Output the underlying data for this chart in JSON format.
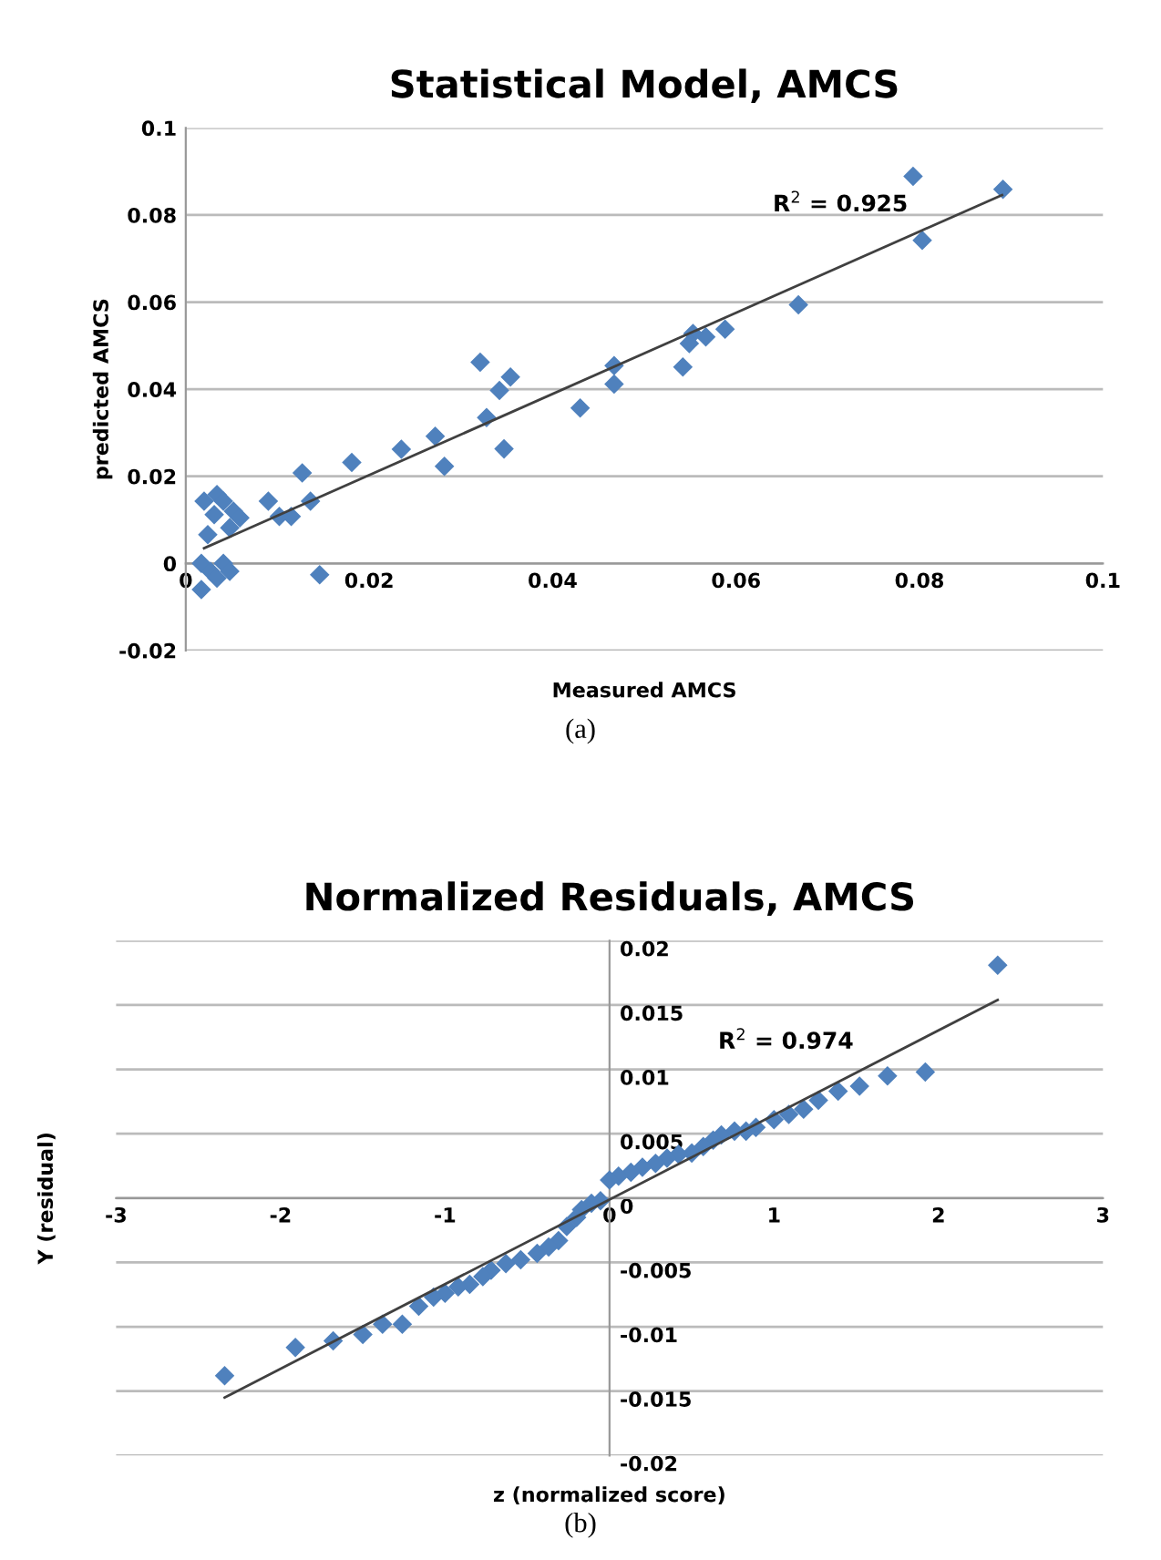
{
  "chart_data": [
    {
      "type": "scatter",
      "title": "Statistical Model, AMCS",
      "xlabel": "Measured AMCS",
      "ylabel": "predicted AMCS",
      "xlim": [
        0,
        0.1
      ],
      "xticks": [
        0,
        0.02,
        0.04,
        0.06,
        0.08,
        0.1
      ],
      "ylim": [
        -0.02,
        0.1
      ],
      "yticks": [
        -0.02,
        0,
        0.02,
        0.04,
        0.06,
        0.08,
        0.1
      ],
      "grid": "y",
      "marker": "diamond",
      "series": [
        {
          "color": "#4f81bd",
          "x": [
            0.0793,
            0.0891,
            0.0803,
            0.0668,
            0.0588,
            0.0567,
            0.0553,
            0.0549,
            0.0542,
            0.0467,
            0.0467,
            0.043,
            0.0321,
            0.0354,
            0.0342,
            0.0328,
            0.0347,
            0.0272,
            0.0282,
            0.0235,
            0.0181,
            0.0127,
            0.0136,
            0.0115,
            0.0102,
            0.009,
            0.0146,
            0.002,
            0.0034,
            0.0041,
            0.0052,
            0.0059,
            0.0024,
            0.0048,
            0.0031,
            0.0017,
            0.0027,
            0.0041,
            0.0048,
            0.0034,
            0.0017
          ],
          "values": [
            0.0889,
            0.0859,
            0.0742,
            0.0594,
            0.0538,
            0.052,
            0.0528,
            0.0505,
            0.0451,
            0.0454,
            0.0412,
            0.0357,
            0.0462,
            0.0428,
            0.0397,
            0.0335,
            0.0263,
            0.0292,
            0.0223,
            0.0262,
            0.0232,
            0.0208,
            0.0143,
            0.0108,
            0.0108,
            0.0143,
            -0.0026,
            0.0143,
            0.0158,
            0.0143,
            0.012,
            0.0105,
            0.0066,
            0.0082,
            0.0112,
            0,
            -0.0018,
            0,
            -0.0018,
            -0.0034,
            -0.006
          ]
        },
        {
          "type": "line",
          "color": "#404040",
          "marker": "none",
          "x": [
            0.002,
            0.089
          ],
          "values": [
            0.0035,
            0.0846
          ]
        }
      ],
      "annotations": [
        "R$^{2}$ = 0.925",
        "(a)"
      ]
    },
    {
      "type": "scatter",
      "title": "Normalized Residuals, AMCS",
      "xlabel": "z (normalized score)",
      "ylabel": "Y (residual)",
      "xlim": [
        -3,
        3
      ],
      "xticks": [
        -3,
        -2,
        -1,
        0,
        1,
        2,
        3
      ],
      "ylim": [
        -0.02,
        0.02
      ],
      "yticks": [
        -0.02,
        -0.015,
        -0.01,
        -0.005,
        0,
        0.005,
        0.01,
        0.015,
        0.02
      ],
      "grid": "y",
      "marker": "diamond",
      "series": [
        {
          "color": "#4f81bd",
          "x": [
            2.36,
            1.92,
            1.69,
            1.52,
            1.39,
            1.27,
            1.18,
            1.09,
            1.0,
            0.89,
            0.83,
            0.76,
            0.68,
            0.63,
            0.57,
            0.5,
            0.42,
            0.35,
            0.28,
            0.2,
            0.13,
            0.055,
            0,
            -0.055,
            -0.11,
            -0.17,
            -0.2,
            -0.26,
            -0.31,
            -0.37,
            -0.44,
            -0.54,
            -0.63,
            -0.72,
            -0.77,
            -0.85,
            -0.92,
            -1.0,
            -1.07,
            -1.16,
            -1.26,
            -1.38,
            -1.5,
            -1.68,
            -1.91,
            -2.34
          ],
          "values": [
            0.0181,
            0.0098,
            0.0095,
            0.0087,
            0.0083,
            0.0076,
            0.0069,
            0.0065,
            0.0061,
            0.0055,
            0.0052,
            0.0052,
            0.0049,
            0.0045,
            0.004,
            0.0035,
            0.0034,
            0.0031,
            0.0027,
            0.0024,
            0.002,
            0.0017,
            0.0014,
            -0.0002,
            -0.0004,
            -0.0009,
            -0.0015,
            -0.0022,
            -0.0033,
            -0.0038,
            -0.0043,
            -0.0048,
            -0.0051,
            -0.0056,
            -0.0061,
            -0.0067,
            -0.0069,
            -0.0074,
            -0.0077,
            -0.0084,
            -0.0098,
            -0.0098,
            -0.0106,
            -0.0111,
            -0.0116,
            -0.0138
          ]
        },
        {
          "type": "line",
          "color": "#404040",
          "marker": "none",
          "x": [
            -2.34,
            2.36
          ],
          "values": [
            -0.0155,
            0.0154
          ]
        }
      ],
      "annotations": [
        "R$^{2}$ = 0.974",
        "(b)"
      ]
    }
  ]
}
